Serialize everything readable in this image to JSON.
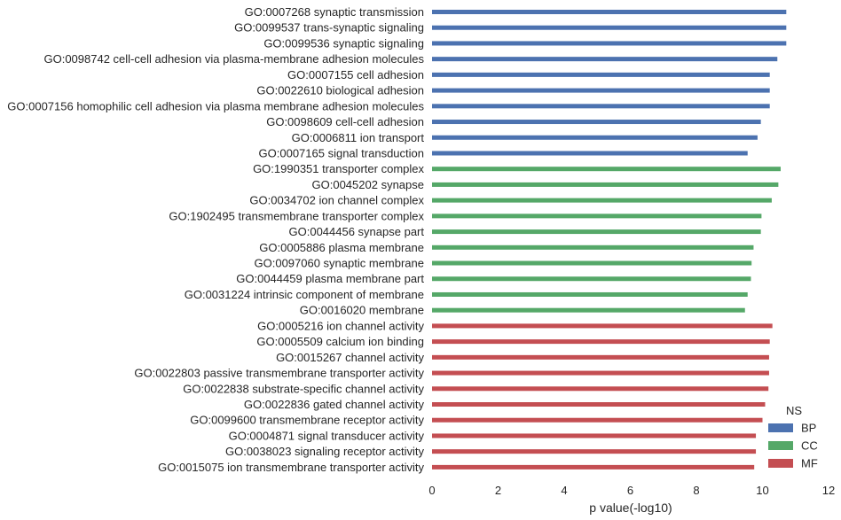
{
  "chart_data": {
    "type": "bar",
    "orientation": "horizontal",
    "xlabel": "p value(-log10)",
    "ylabel": "",
    "xlim": [
      0,
      12
    ],
    "xticks": [
      0,
      2,
      4,
      6,
      8,
      10,
      12
    ],
    "grid": false,
    "legend": {
      "title": "NS",
      "placement": "lower-right",
      "entries": [
        "BP",
        "CC",
        "MF"
      ]
    },
    "colors": {
      "BP": "#4c72b0",
      "CC": "#55a868",
      "MF": "#c44e52"
    },
    "bars": [
      {
        "label": "GO:0007268 synaptic transmission",
        "value": 10.72,
        "group": "BP"
      },
      {
        "label": "GO:0099537 trans-synaptic signaling",
        "value": 10.72,
        "group": "BP"
      },
      {
        "label": "GO:0099536 synaptic signaling",
        "value": 10.72,
        "group": "BP"
      },
      {
        "label": "GO:0098742 cell-cell adhesion via plasma-membrane adhesion molecules",
        "value": 10.45,
        "group": "BP"
      },
      {
        "label": "GO:0007155 cell adhesion",
        "value": 10.22,
        "group": "BP"
      },
      {
        "label": "GO:0022610 biological adhesion",
        "value": 10.22,
        "group": "BP"
      },
      {
        "label": "GO:0007156 homophilic cell adhesion via plasma membrane adhesion molecules",
        "value": 10.22,
        "group": "BP"
      },
      {
        "label": "GO:0098609 cell-cell adhesion",
        "value": 9.95,
        "group": "BP"
      },
      {
        "label": "GO:0006811 ion transport",
        "value": 9.85,
        "group": "BP"
      },
      {
        "label": "GO:0007165 signal transduction",
        "value": 9.55,
        "group": "BP"
      },
      {
        "label": "GO:1990351 transporter complex",
        "value": 10.55,
        "group": "CC"
      },
      {
        "label": "GO:0045202 synapse",
        "value": 10.48,
        "group": "CC"
      },
      {
        "label": "GO:0034702 ion channel complex",
        "value": 10.28,
        "group": "CC"
      },
      {
        "label": "GO:1902495 transmembrane transporter complex",
        "value": 9.97,
        "group": "CC"
      },
      {
        "label": "GO:0044456 synapse part",
        "value": 9.95,
        "group": "CC"
      },
      {
        "label": "GO:0005886 plasma membrane",
        "value": 9.73,
        "group": "CC"
      },
      {
        "label": "GO:0097060 synaptic membrane",
        "value": 9.67,
        "group": "CC"
      },
      {
        "label": "GO:0044459 plasma membrane part",
        "value": 9.65,
        "group": "CC"
      },
      {
        "label": "GO:0031224 intrinsic component of membrane",
        "value": 9.55,
        "group": "CC"
      },
      {
        "label": "GO:0016020 membrane",
        "value": 9.47,
        "group": "CC"
      },
      {
        "label": "GO:0005216 ion channel activity",
        "value": 10.3,
        "group": "MF"
      },
      {
        "label": "GO:0005509 calcium ion binding",
        "value": 10.22,
        "group": "MF"
      },
      {
        "label": "GO:0015267 channel activity",
        "value": 10.2,
        "group": "MF"
      },
      {
        "label": "GO:0022803 passive transmembrane transporter activity",
        "value": 10.2,
        "group": "MF"
      },
      {
        "label": "GO:0022838 substrate-specific channel activity",
        "value": 10.18,
        "group": "MF"
      },
      {
        "label": "GO:0022836 gated channel activity",
        "value": 10.08,
        "group": "MF"
      },
      {
        "label": "GO:0099600 transmembrane receptor activity",
        "value": 10.0,
        "group": "MF"
      },
      {
        "label": "GO:0004871 signal transducer activity",
        "value": 9.8,
        "group": "MF"
      },
      {
        "label": "GO:0038023 signaling receptor activity",
        "value": 9.8,
        "group": "MF"
      },
      {
        "label": "GO:0015075 ion transmembrane transporter activity",
        "value": 9.75,
        "group": "MF"
      }
    ]
  }
}
